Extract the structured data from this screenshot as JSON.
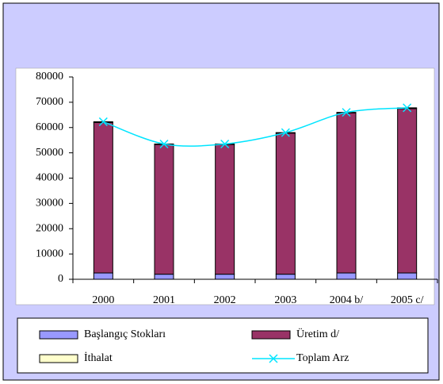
{
  "chart_data": {
    "type": "bar",
    "categories": [
      "2000",
      "2001",
      "2002",
      "2003",
      "2004 b/",
      "2005 c/"
    ],
    "series": [
      {
        "name": "Başlangıç Stokları",
        "color": "#9999ff",
        "values": [
          2500,
          2000,
          2000,
          2000,
          2500,
          2500
        ]
      },
      {
        "name": "Üretim d/",
        "color": "#993366",
        "values": [
          59500,
          51300,
          51300,
          55800,
          63300,
          65000
        ]
      },
      {
        "name": "İthalat",
        "color": "#ffffcc",
        "values": [
          300,
          200,
          200,
          200,
          200,
          300
        ]
      },
      {
        "name": "Toplam Arz",
        "type": "line",
        "color": "#00e5ff",
        "values": [
          62300,
          53500,
          53500,
          58000,
          66000,
          67800
        ]
      }
    ],
    "ylim": [
      0,
      80000
    ],
    "yticks": [
      0,
      10000,
      20000,
      30000,
      40000,
      50000,
      60000,
      70000,
      80000
    ],
    "grid": false,
    "legend": "bottom"
  }
}
